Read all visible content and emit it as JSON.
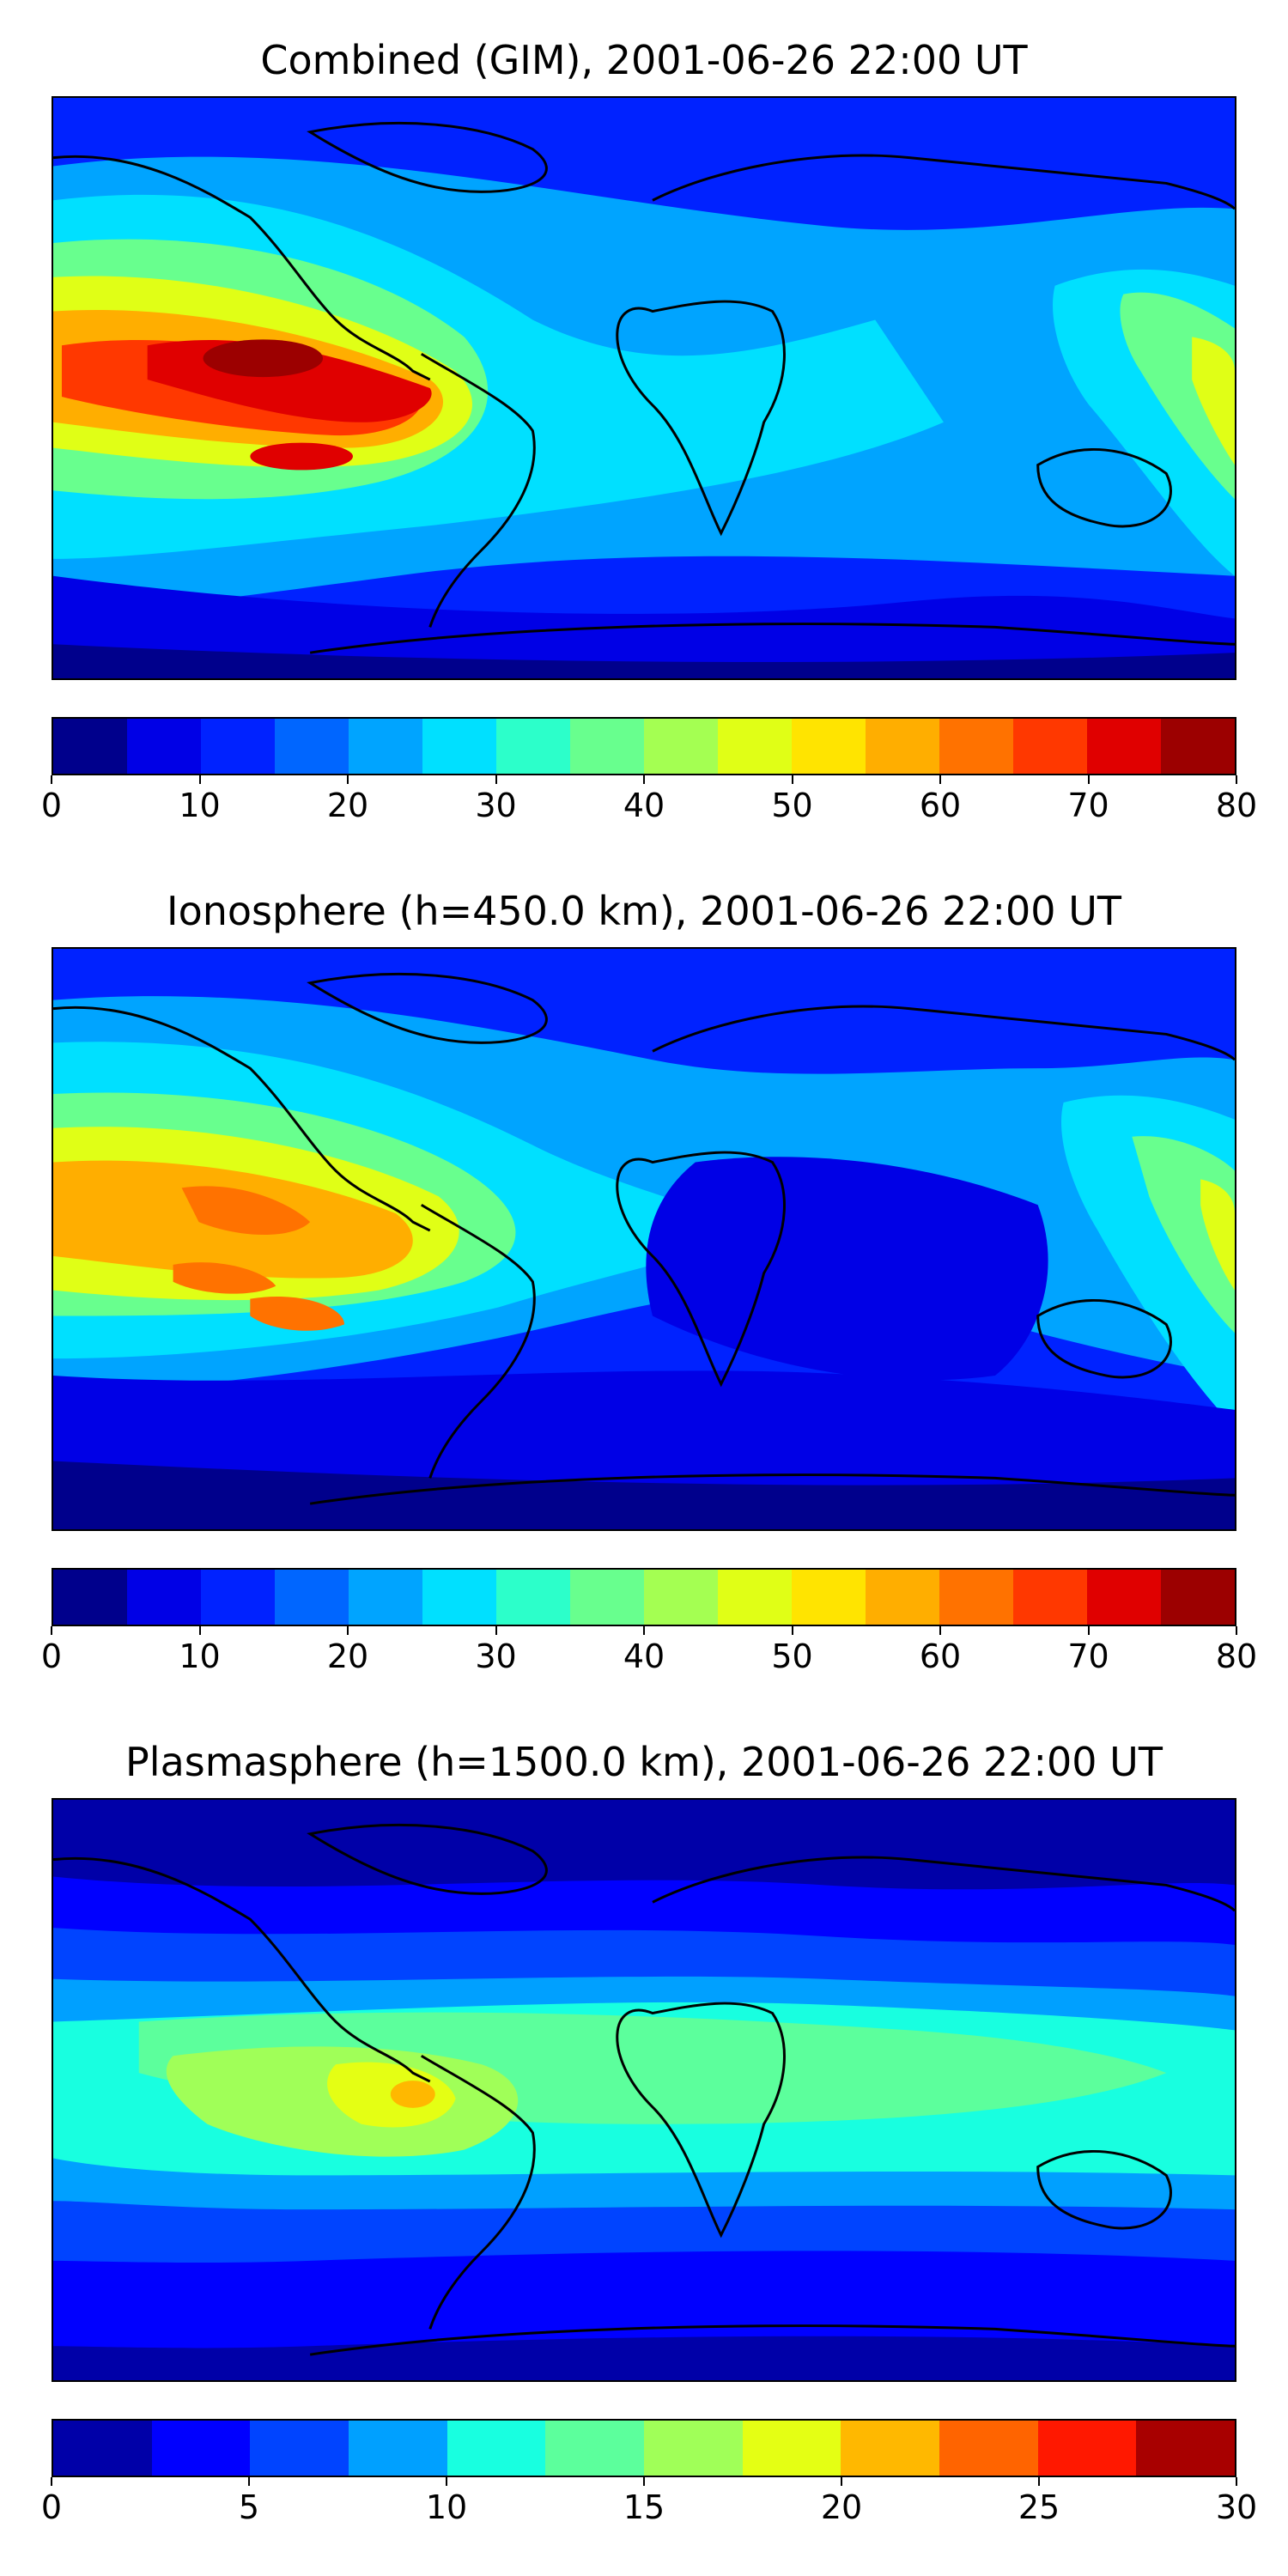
{
  "panels": [
    {
      "title": "Combined (GIM), 2001-06-26 22:00 UT",
      "colorbar": {
        "min": 0,
        "max": 80,
        "ticks": [
          "0",
          "10",
          "20",
          "30",
          "40",
          "50",
          "60",
          "70",
          "80"
        ],
        "colors": [
          "#00008c",
          "#0000e6",
          "#0022ff",
          "#0066ff",
          "#00a4ff",
          "#00e0ff",
          "#2cffca",
          "#68ff8e",
          "#a4ff52",
          "#e0ff16",
          "#ffe400",
          "#ffae00",
          "#ff7200",
          "#ff3800",
          "#e00000",
          "#9c0000"
        ]
      }
    },
    {
      "title": "Ionosphere  (h=450.0 km), 2001-06-26 22:00 UT",
      "colorbar": {
        "min": 0,
        "max": 80,
        "ticks": [
          "0",
          "10",
          "20",
          "30",
          "40",
          "50",
          "60",
          "70",
          "80"
        ],
        "colors": [
          "#00008c",
          "#0000e6",
          "#0022ff",
          "#0066ff",
          "#00a4ff",
          "#00e0ff",
          "#2cffca",
          "#68ff8e",
          "#a4ff52",
          "#e0ff16",
          "#ffe400",
          "#ffae00",
          "#ff7200",
          "#ff3800",
          "#e00000",
          "#9c0000"
        ]
      }
    },
    {
      "title": "Plasmasphere (h=1500.0 km), 2001-06-26 22:00 UT",
      "colorbar": {
        "min": 0,
        "max": 30,
        "ticks": [
          "0",
          "5",
          "10",
          "15",
          "20",
          "25",
          "30"
        ],
        "colors": [
          "#0000a8",
          "#0000ff",
          "#0044ff",
          "#00a0ff",
          "#18ffe0",
          "#5cff9c",
          "#a0ff58",
          "#e4ff14",
          "#ffb800",
          "#ff6400",
          "#ff1800",
          "#a80000"
        ]
      }
    }
  ]
}
